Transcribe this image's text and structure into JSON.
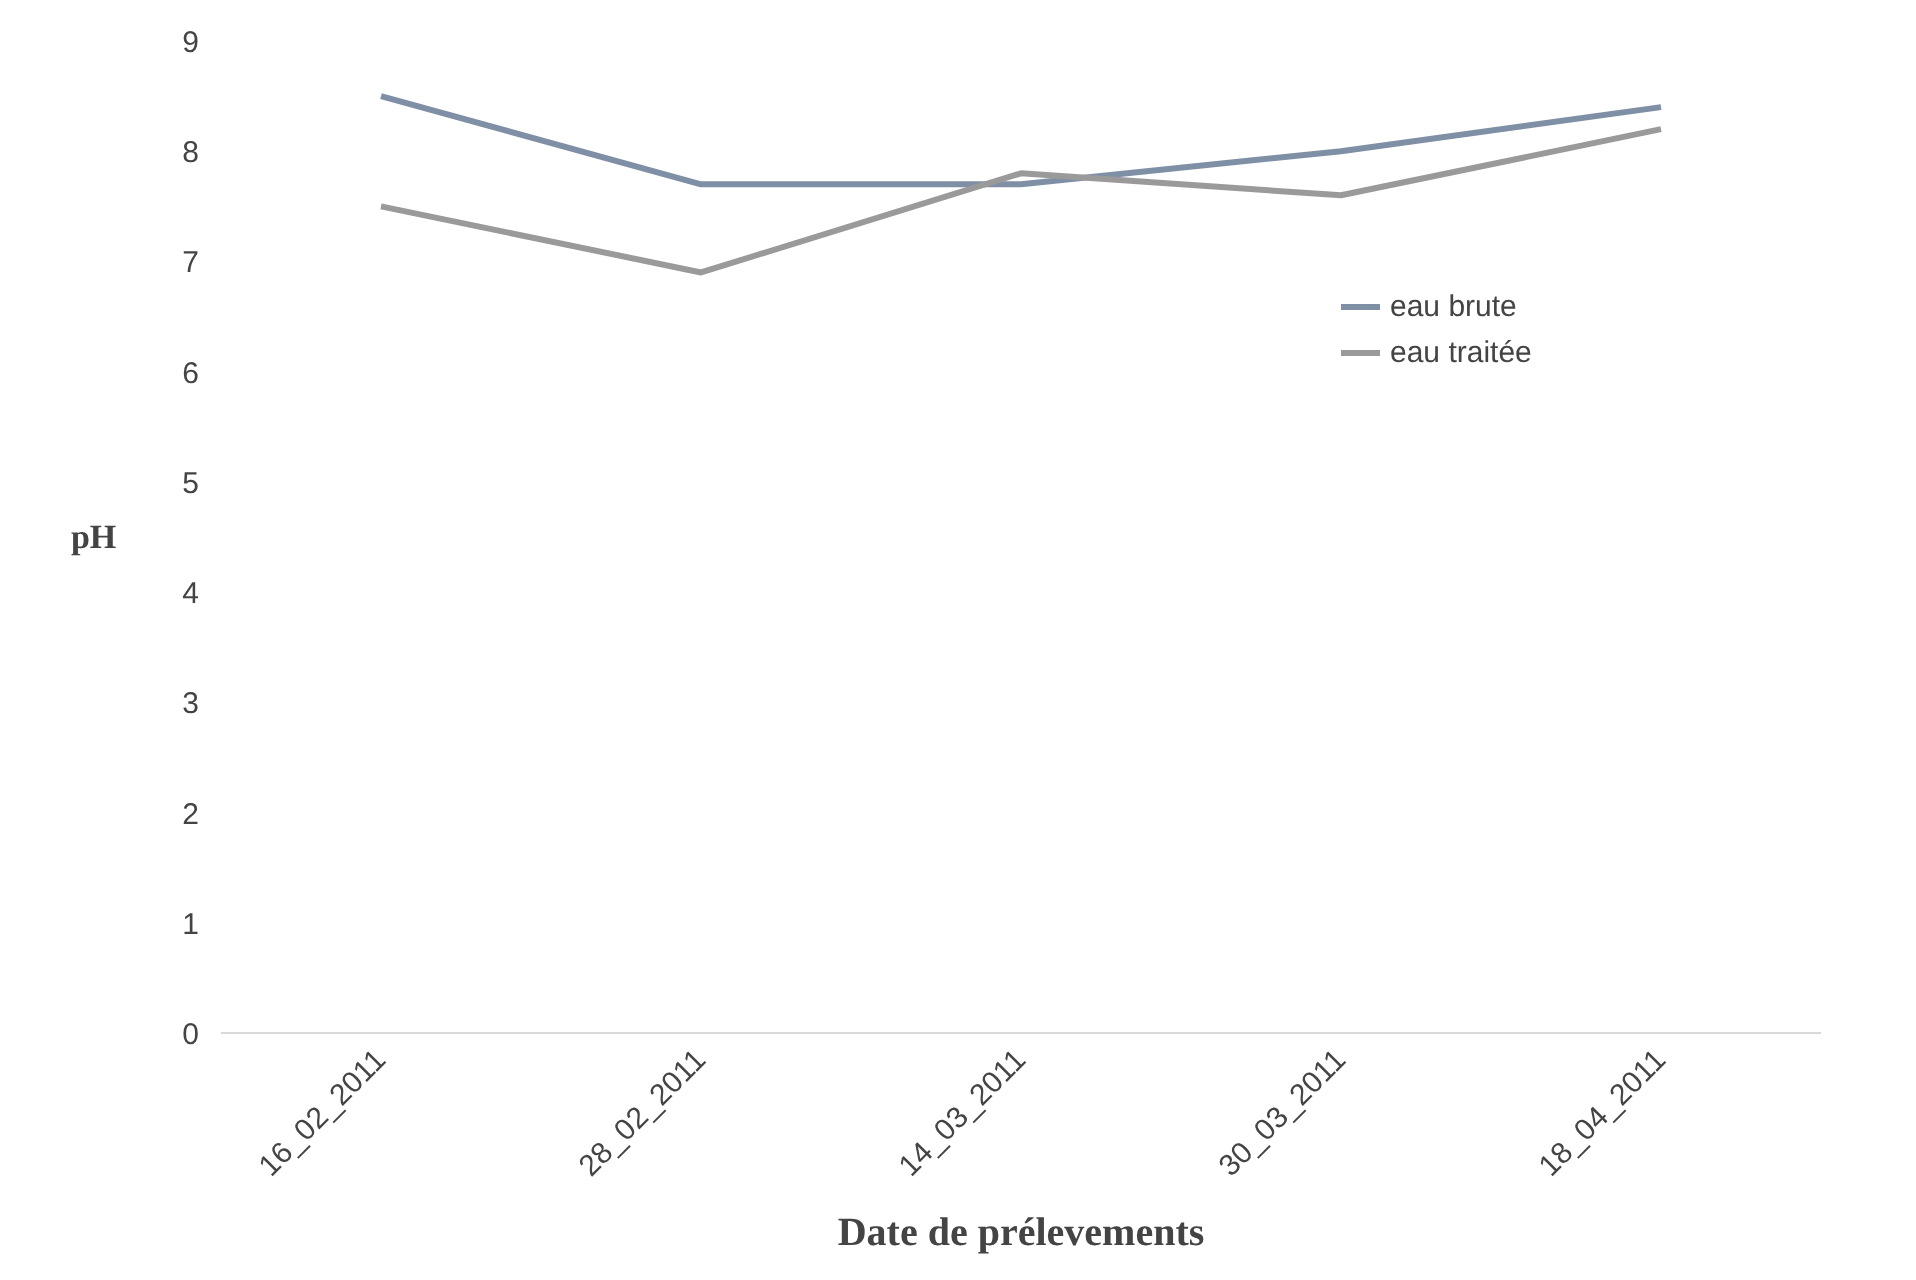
{
  "chart_data": {
    "type": "line",
    "ylabel": "pH",
    "xlabel": "Date de prélevements",
    "categories": [
      "16_02_2011",
      "28_02_2011",
      "14_03_2011",
      "30_03_2011",
      "18_04_2011"
    ],
    "series": [
      {
        "name": "eau brute",
        "color": "#7f8fa6",
        "values": [
          8.5,
          7.7,
          7.7,
          8.0,
          8.4
        ]
      },
      {
        "name": "eau traitée",
        "color": "#9a9a9a",
        "values": [
          7.5,
          6.9,
          7.8,
          7.6,
          8.2
        ]
      }
    ],
    "ylim": [
      0,
      9
    ],
    "yticks": [
      0,
      1,
      2,
      3,
      4,
      5,
      6,
      7,
      8,
      9
    ],
    "grid": false,
    "legend": "right",
    "marker": "none"
  }
}
